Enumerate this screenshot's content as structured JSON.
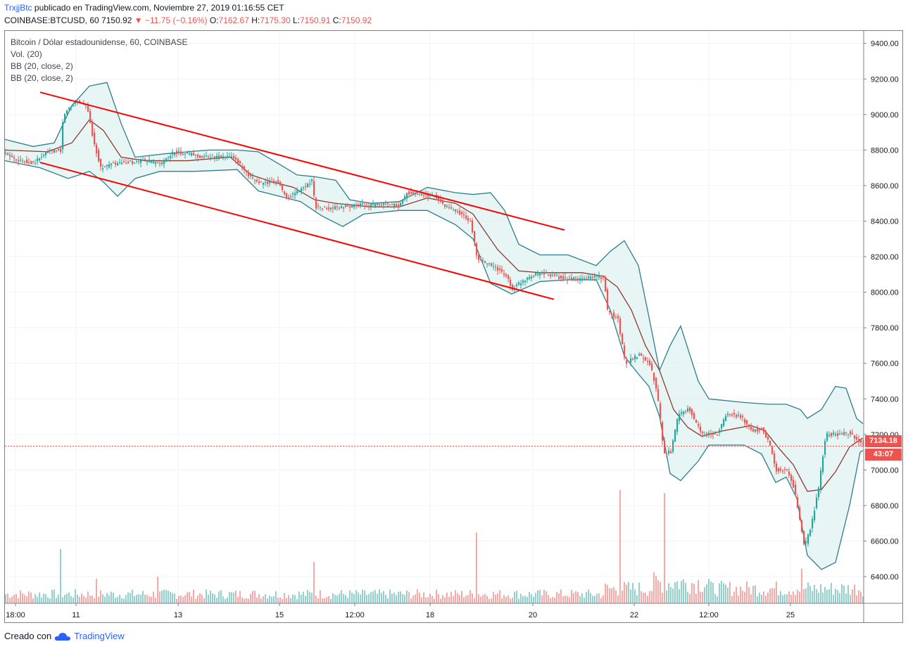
{
  "header": {
    "author": "TrxjjBtc",
    "published": "publicado en TradingView.com, Noviembre 27, 2019 01:16:55 CET",
    "symbol": "COINBASE:BTCUSD, 60",
    "last": "7150.92",
    "change": "▼ −11.75 (−0.16%)",
    "o_key": "O:",
    "o_val": "7162.67",
    "h_key": "H:",
    "h_val": "7175.30",
    "l_key": "L:",
    "l_val": "7150.91",
    "c_key": "C:",
    "c_val": "7150.92"
  },
  "legend": {
    "title": "Bitcoin / Dólar estadounidense, 60, COINBASE",
    "vol": "Vol. (20)",
    "bb1": "BB (20, close, 2)",
    "bb2": "BB (20, close, 2)"
  },
  "footer": {
    "created": "Creado con",
    "brand": "TradingView"
  },
  "price_label": {
    "last": "7134.18",
    "countdown": "43:07"
  },
  "colors": {
    "up": "#26a69a",
    "down": "#ef5350",
    "bb_band": "#2e7d8e",
    "bb_basis": "#8b3a30",
    "channel": "#ff0000",
    "bb_fill": "#e0f2f1"
  },
  "chart_data": {
    "type": "candlestick",
    "y_axis": {
      "ticks": [
        "9400.00",
        "9200.00",
        "9000.00",
        "8800.00",
        "8600.00",
        "8400.00",
        "8200.00",
        "8000.00",
        "7800.00",
        "7600.00",
        "7400.00",
        "7200.00",
        "7000.00",
        "6800.00",
        "6600.00",
        "6400.00"
      ],
      "min": 6250,
      "max": 9470
    },
    "x_axis": {
      "ticks": [
        "18:00",
        "11",
        "13",
        "15",
        "12:00",
        "18",
        "20",
        "22",
        "12:00",
        "25"
      ]
    },
    "close_path": [
      [
        0,
        8780
      ],
      [
        20,
        8740
      ],
      [
        40,
        8730
      ],
      [
        60,
        8790
      ],
      [
        78,
        8800
      ],
      [
        82,
        9000
      ],
      [
        100,
        9080
      ],
      [
        115,
        9050
      ],
      [
        125,
        8850
      ],
      [
        135,
        8700
      ],
      [
        150,
        8720
      ],
      [
        175,
        8730
      ],
      [
        200,
        8740
      ],
      [
        220,
        8720
      ],
      [
        240,
        8790
      ],
      [
        260,
        8780
      ],
      [
        280,
        8760
      ],
      [
        300,
        8760
      ],
      [
        325,
        8760
      ],
      [
        345,
        8650
      ],
      [
        365,
        8610
      ],
      [
        385,
        8630
      ],
      [
        400,
        8530
      ],
      [
        420,
        8580
      ],
      [
        435,
        8630
      ],
      [
        440,
        8480
      ],
      [
        460,
        8470
      ],
      [
        480,
        8480
      ],
      [
        500,
        8490
      ],
      [
        530,
        8490
      ],
      [
        560,
        8490
      ],
      [
        570,
        8560
      ],
      [
        590,
        8550
      ],
      [
        610,
        8540
      ],
      [
        625,
        8480
      ],
      [
        640,
        8460
      ],
      [
        660,
        8400
      ],
      [
        670,
        8190
      ],
      [
        690,
        8150
      ],
      [
        710,
        8100
      ],
      [
        720,
        8020
      ],
      [
        740,
        8080
      ],
      [
        760,
        8110
      ],
      [
        790,
        8080
      ],
      [
        815,
        8070
      ],
      [
        840,
        8090
      ],
      [
        850,
        8080
      ],
      [
        855,
        7900
      ],
      [
        870,
        7850
      ],
      [
        880,
        7600
      ],
      [
        900,
        7650
      ],
      [
        915,
        7600
      ],
      [
        925,
        7450
      ],
      [
        935,
        7100
      ],
      [
        945,
        7100
      ],
      [
        955,
        7300
      ],
      [
        970,
        7350
      ],
      [
        990,
        7200
      ],
      [
        1010,
        7200
      ],
      [
        1025,
        7320
      ],
      [
        1045,
        7300
      ],
      [
        1060,
        7220
      ],
      [
        1075,
        7230
      ],
      [
        1085,
        7150
      ],
      [
        1095,
        7000
      ],
      [
        1110,
        7000
      ],
      [
        1120,
        6900
      ],
      [
        1135,
        6560
      ],
      [
        1145,
        6700
      ],
      [
        1155,
        6900
      ],
      [
        1165,
        7200
      ],
      [
        1185,
        7200
      ],
      [
        1200,
        7210
      ],
      [
        1215,
        7150
      ],
      [
        1219,
        7151
      ]
    ],
    "bb_upper_path": [
      [
        0,
        8860
      ],
      [
        40,
        8820
      ],
      [
        70,
        8840
      ],
      [
        95,
        9050
      ],
      [
        120,
        9160
      ],
      [
        145,
        9180
      ],
      [
        165,
        8950
      ],
      [
        185,
        8760
      ],
      [
        230,
        8780
      ],
      [
        290,
        8800
      ],
      [
        330,
        8800
      ],
      [
        360,
        8790
      ],
      [
        390,
        8720
      ],
      [
        415,
        8660
      ],
      [
        440,
        8650
      ],
      [
        470,
        8630
      ],
      [
        490,
        8520
      ],
      [
        520,
        8500
      ],
      [
        560,
        8510
      ],
      [
        600,
        8590
      ],
      [
        640,
        8560
      ],
      [
        665,
        8550
      ],
      [
        690,
        8560
      ],
      [
        710,
        8460
      ],
      [
        730,
        8270
      ],
      [
        760,
        8210
      ],
      [
        800,
        8210
      ],
      [
        840,
        8150
      ],
      [
        860,
        8230
      ],
      [
        880,
        8290
      ],
      [
        900,
        8150
      ],
      [
        915,
        7860
      ],
      [
        930,
        7560
      ],
      [
        945,
        7700
      ],
      [
        960,
        7810
      ],
      [
        985,
        7500
      ],
      [
        1000,
        7400
      ],
      [
        1050,
        7380
      ],
      [
        1085,
        7370
      ],
      [
        1110,
        7370
      ],
      [
        1130,
        7340
      ],
      [
        1140,
        7290
      ],
      [
        1160,
        7340
      ],
      [
        1180,
        7470
      ],
      [
        1195,
        7460
      ],
      [
        1210,
        7290
      ],
      [
        1219,
        7260
      ]
    ],
    "bb_lower_path": [
      [
        0,
        8740
      ],
      [
        50,
        8700
      ],
      [
        90,
        8640
      ],
      [
        120,
        8680
      ],
      [
        140,
        8620
      ],
      [
        160,
        8540
      ],
      [
        185,
        8640
      ],
      [
        220,
        8680
      ],
      [
        270,
        8680
      ],
      [
        330,
        8690
      ],
      [
        360,
        8570
      ],
      [
        390,
        8540
      ],
      [
        420,
        8510
      ],
      [
        450,
        8430
      ],
      [
        480,
        8370
      ],
      [
        510,
        8440
      ],
      [
        560,
        8460
      ],
      [
        600,
        8460
      ],
      [
        640,
        8380
      ],
      [
        665,
        8300
      ],
      [
        690,
        8050
      ],
      [
        720,
        7990
      ],
      [
        760,
        8060
      ],
      [
        800,
        8070
      ],
      [
        840,
        8070
      ],
      [
        860,
        7900
      ],
      [
        880,
        7640
      ],
      [
        900,
        7540
      ],
      [
        915,
        7470
      ],
      [
        930,
        7300
      ],
      [
        945,
        6980
      ],
      [
        960,
        6940
      ],
      [
        985,
        7050
      ],
      [
        1000,
        7140
      ],
      [
        1050,
        7140
      ],
      [
        1075,
        7090
      ],
      [
        1095,
        6930
      ],
      [
        1110,
        6960
      ],
      [
        1125,
        6840
      ],
      [
        1140,
        6520
      ],
      [
        1160,
        6440
      ],
      [
        1180,
        6480
      ],
      [
        1200,
        6800
      ],
      [
        1215,
        7100
      ],
      [
        1219,
        7110
      ]
    ],
    "bb_basis_path": [
      [
        0,
        8800
      ],
      [
        60,
        8790
      ],
      [
        95,
        8840
      ],
      [
        120,
        8970
      ],
      [
        140,
        8910
      ],
      [
        165,
        8760
      ],
      [
        200,
        8740
      ],
      [
        260,
        8740
      ],
      [
        320,
        8760
      ],
      [
        350,
        8660
      ],
      [
        380,
        8620
      ],
      [
        410,
        8590
      ],
      [
        440,
        8520
      ],
      [
        470,
        8500
      ],
      [
        520,
        8480
      ],
      [
        560,
        8480
      ],
      [
        600,
        8530
      ],
      [
        640,
        8500
      ],
      [
        665,
        8440
      ],
      [
        700,
        8240
      ],
      [
        730,
        8120
      ],
      [
        760,
        8110
      ],
      [
        820,
        8110
      ],
      [
        850,
        8090
      ],
      [
        870,
        8030
      ],
      [
        890,
        7900
      ],
      [
        910,
        7700
      ],
      [
        930,
        7560
      ],
      [
        950,
        7340
      ],
      [
        970,
        7240
      ],
      [
        990,
        7190
      ],
      [
        1020,
        7220
      ],
      [
        1060,
        7250
      ],
      [
        1080,
        7220
      ],
      [
        1100,
        7120
      ],
      [
        1120,
        7030
      ],
      [
        1140,
        6880
      ],
      [
        1160,
        6890
      ],
      [
        1180,
        6990
      ],
      [
        1200,
        7130
      ],
      [
        1219,
        7180
      ]
    ],
    "channel_upper": [
      [
        50,
        9125
      ],
      [
        795,
        8350
      ]
    ],
    "channel_lower": [
      [
        50,
        8730
      ],
      [
        780,
        7960
      ]
    ],
    "current_price": 7134.18,
    "volume_spikes": [
      [
        77,
        0.55
      ],
      [
        130,
        0.25
      ],
      [
        215,
        0.27
      ],
      [
        438,
        0.42
      ],
      [
        668,
        0.72
      ],
      [
        873,
        0.72
      ],
      [
        935,
        0.5
      ],
      [
        1132,
        0.22
      ]
    ]
  }
}
